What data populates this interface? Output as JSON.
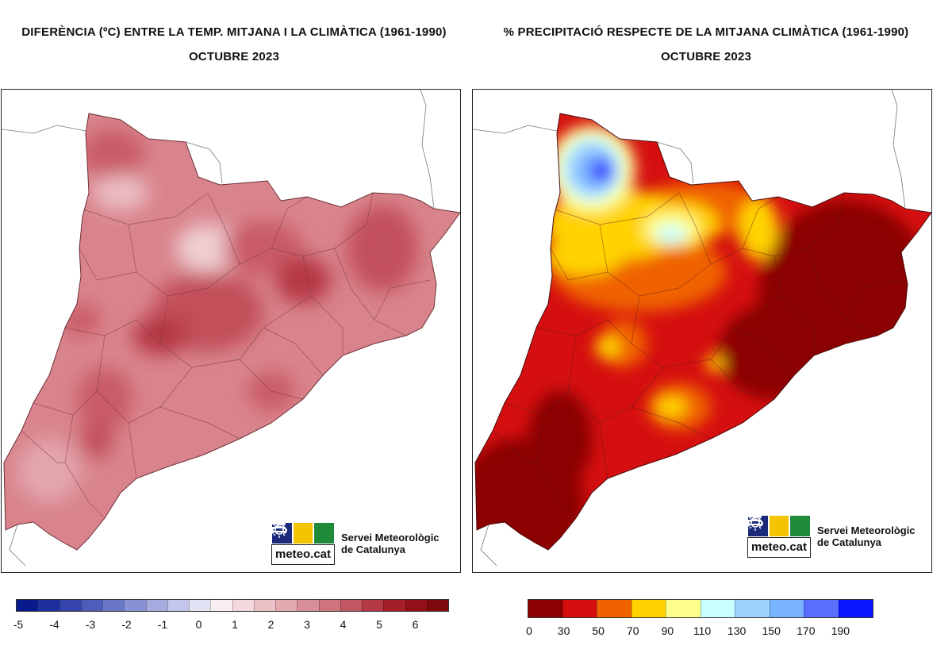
{
  "left_panel": {
    "title_line1": "DIFERÈNCIA (ºC) ENTRE LA TEMP. MITJANA I LA CLIMÀTICA (1961-1990)",
    "title_line2": "OCTUBRE 2023",
    "legend": {
      "colors": [
        "#081a8c",
        "#1d2f9c",
        "#3444ab",
        "#4e5db9",
        "#6a77c6",
        "#8791d3",
        "#a5abdf",
        "#c3c6ea",
        "#e1e2f4",
        "#f8eef0",
        "#f2d9dc",
        "#ebc2c7",
        "#e3aab0",
        "#d98f98",
        "#ce747e",
        "#c25762",
        "#b53945",
        "#a51f2b",
        "#941019",
        "#7e0a10"
      ],
      "tick_labels": [
        "-5",
        "-4",
        "-3",
        "-2",
        "-1",
        "0",
        "1",
        "2",
        "3",
        "4",
        "5",
        "6"
      ]
    }
  },
  "right_panel": {
    "title_line1": "% PRECIPITACIÓ RESPECTE DE LA MITJANA CLIMÀTICA (1961-1990)",
    "title_line2": "OCTUBRE 2023",
    "legend": {
      "colors": [
        "#8b0000",
        "#d50f0f",
        "#f06200",
        "#ffd200",
        "#ffff8c",
        "#c8ffff",
        "#a0d2ff",
        "#78b4ff",
        "#5a6eff",
        "#0a14ff"
      ],
      "tick_labels": [
        "0",
        "30",
        "50",
        "70",
        "90",
        "110",
        "130",
        "150",
        "170",
        "190"
      ]
    }
  },
  "logo": {
    "brand": "meteo.cat",
    "org_line1": "Servei Meteorològic",
    "org_line2": "de Catalunya",
    "colors": {
      "navy": "#1b2a7a",
      "yellow": "#f5c400",
      "green": "#1f8a3a"
    },
    "icons": [
      "waves-icon",
      "sun-icon",
      "cloud-icon"
    ]
  }
}
